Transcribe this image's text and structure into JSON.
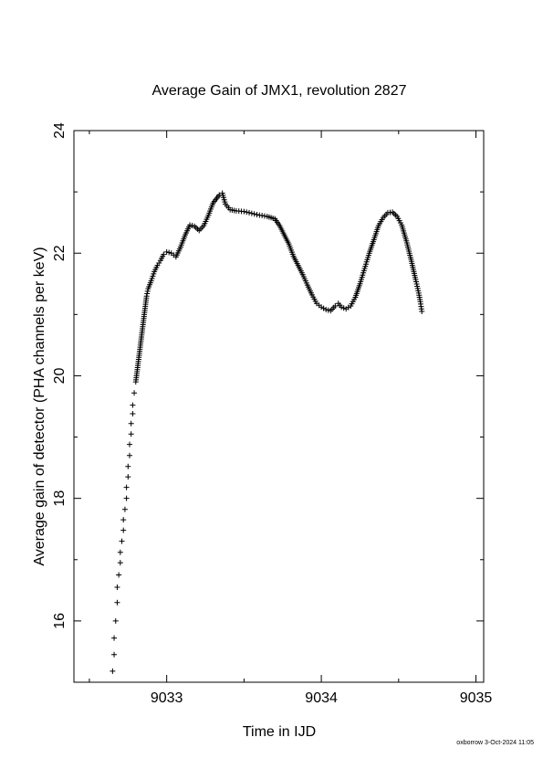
{
  "chart_data": {
    "type": "scatter",
    "title": "Average Gain of JMX1, revolution 2827",
    "xlabel": "Time in IJD",
    "ylabel": "Average gain of detector (PHA channels per keV)",
    "xlim": [
      9032.4,
      9035.05
    ],
    "ylim": [
      15,
      24
    ],
    "xticks": [
      9033,
      9034,
      9035
    ],
    "yticks": [
      16,
      18,
      20,
      22,
      24
    ],
    "marker": "plus",
    "grid": false,
    "legend": "none",
    "series": [
      {
        "points": [
          [
            9032.65,
            15.18
          ],
          [
            9032.66,
            15.45
          ],
          [
            9032.66,
            15.72
          ],
          [
            9032.67,
            16.0
          ],
          [
            9032.68,
            16.3
          ],
          [
            9032.68,
            16.55
          ],
          [
            9032.69,
            16.75
          ],
          [
            9032.7,
            16.95
          ],
          [
            9032.7,
            17.12
          ],
          [
            9032.71,
            17.3
          ],
          [
            9032.72,
            17.48
          ],
          [
            9032.72,
            17.65
          ],
          [
            9032.73,
            17.82
          ],
          [
            9032.74,
            18.0
          ],
          [
            9032.74,
            18.18
          ],
          [
            9032.75,
            18.35
          ],
          [
            9032.75,
            18.52
          ],
          [
            9032.76,
            18.7
          ],
          [
            9032.76,
            18.88
          ],
          [
            9032.77,
            19.05
          ],
          [
            9032.77,
            19.22
          ],
          [
            9032.78,
            19.38
          ],
          [
            9032.78,
            19.52
          ],
          [
            9032.79,
            19.72
          ],
          [
            9032.8,
            19.9
          ],
          [
            9032.81,
            20.1
          ],
          [
            9032.82,
            20.3
          ],
          [
            9032.83,
            20.5
          ],
          [
            9032.84,
            20.7
          ],
          [
            9032.85,
            20.9
          ],
          [
            9032.86,
            21.1
          ],
          [
            9032.87,
            21.3
          ],
          [
            9032.88,
            21.42
          ],
          [
            9032.9,
            21.55
          ],
          [
            9032.92,
            21.7
          ],
          [
            9032.94,
            21.8
          ],
          [
            9032.96,
            21.88
          ],
          [
            9032.98,
            21.98
          ],
          [
            9033.0,
            22.02
          ],
          [
            9033.03,
            22.0
          ],
          [
            9033.06,
            21.94
          ],
          [
            9033.09,
            22.1
          ],
          [
            9033.12,
            22.3
          ],
          [
            9033.15,
            22.46
          ],
          [
            9033.18,
            22.44
          ],
          [
            9033.21,
            22.37
          ],
          [
            9033.24,
            22.45
          ],
          [
            9033.27,
            22.62
          ],
          [
            9033.3,
            22.82
          ],
          [
            9033.34,
            22.95
          ],
          [
            9033.36,
            22.98
          ],
          [
            9033.38,
            22.8
          ],
          [
            9033.41,
            22.71
          ],
          [
            9033.45,
            22.69
          ],
          [
            9033.5,
            22.68
          ],
          [
            9033.55,
            22.65
          ],
          [
            9033.6,
            22.62
          ],
          [
            9033.65,
            22.6
          ],
          [
            9033.7,
            22.56
          ],
          [
            9033.73,
            22.45
          ],
          [
            9033.76,
            22.3
          ],
          [
            9033.79,
            22.15
          ],
          [
            9033.82,
            21.95
          ],
          [
            9033.85,
            21.8
          ],
          [
            9033.88,
            21.65
          ],
          [
            9033.91,
            21.48
          ],
          [
            9033.94,
            21.32
          ],
          [
            9033.97,
            21.18
          ],
          [
            9034.0,
            21.12
          ],
          [
            9034.03,
            21.08
          ],
          [
            9034.06,
            21.06
          ],
          [
            9034.09,
            21.14
          ],
          [
            9034.11,
            21.18
          ],
          [
            9034.13,
            21.12
          ],
          [
            9034.16,
            21.09
          ],
          [
            9034.19,
            21.14
          ],
          [
            9034.22,
            21.28
          ],
          [
            9034.25,
            21.5
          ],
          [
            9034.28,
            21.75
          ],
          [
            9034.31,
            22.0
          ],
          [
            9034.34,
            22.22
          ],
          [
            9034.37,
            22.45
          ],
          [
            9034.4,
            22.58
          ],
          [
            9034.43,
            22.66
          ],
          [
            9034.46,
            22.67
          ],
          [
            9034.49,
            22.6
          ],
          [
            9034.52,
            22.46
          ],
          [
            9034.55,
            22.2
          ],
          [
            9034.58,
            21.9
          ],
          [
            9034.61,
            21.57
          ],
          [
            9034.63,
            21.35
          ],
          [
            9034.64,
            21.21
          ],
          [
            9034.65,
            21.05
          ]
        ]
      }
    ]
  },
  "footer": "oxborrow  3-Oct-2024 11:05"
}
